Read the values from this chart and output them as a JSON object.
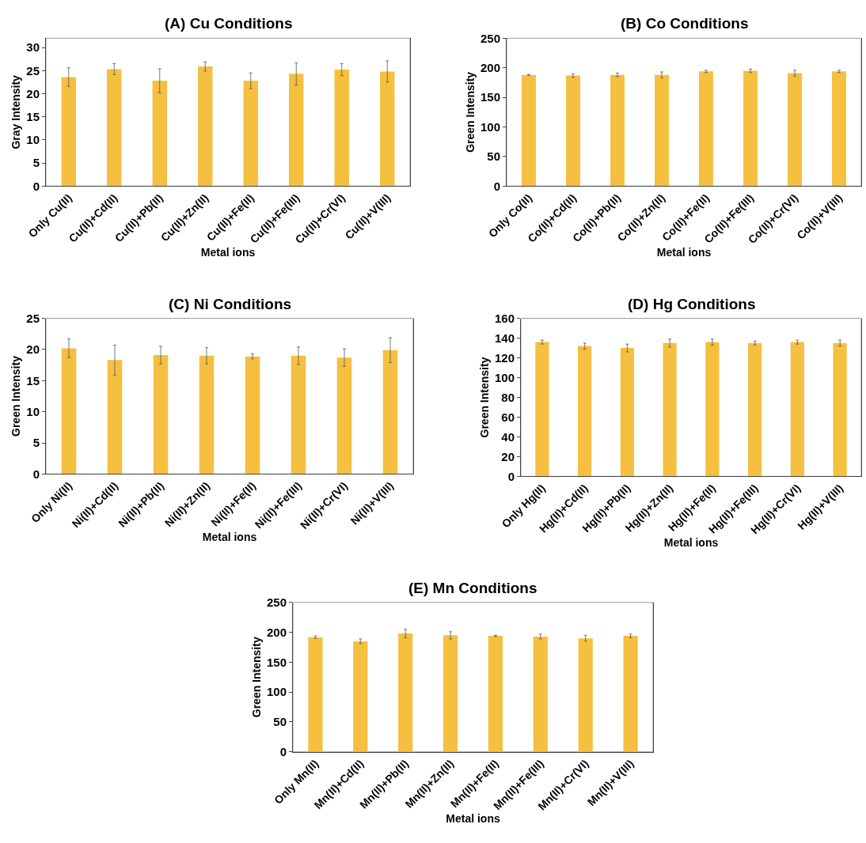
{
  "chart_data": [
    {
      "type": "bar",
      "title": "(A) Cu Conditions",
      "xlabel": "Metal ions",
      "ylabel": "Gray Intensity",
      "categories": [
        "Only Cu(II)",
        "Cu(II)+Cd(II)",
        "Cu(II)+Pb(II)",
        "Cu(II)+Zn(II)",
        "Cu(II)+Fe(II)",
        "Cu(II)+Fe(III)",
        "Cu(II)+Cr(VI)",
        "Cu(II)+V(III)"
      ],
      "values": [
        23.6,
        25.3,
        22.8,
        25.9,
        22.8,
        24.3,
        25.2,
        24.8
      ],
      "errors": [
        2.0,
        1.2,
        2.6,
        1.0,
        1.7,
        2.4,
        1.3,
        2.3
      ],
      "color": "#f5bf3f",
      "ylim": [
        0,
        32
      ],
      "yticks": [
        0,
        5,
        10,
        15,
        20,
        25,
        30
      ]
    },
    {
      "type": "bar",
      "title": "(B) Co Conditions",
      "xlabel": "Metal ions",
      "ylabel": "Green Intensity",
      "categories": [
        "Only Co(II)",
        "Co(II)+Cd(II)",
        "Co(II)+Pb(II)",
        "Co(II)+Zn(II)",
        "Co(II)+Fe(II)",
        "Co(II)+Fe(III)",
        "Co(II)+Cr(VI)",
        "Co(II)+V(III)"
      ],
      "values": [
        188,
        187,
        188,
        188,
        194,
        195,
        191,
        194
      ],
      "errors": [
        1,
        3,
        3,
        5,
        2,
        3,
        5,
        2
      ],
      "color": "#f5bf3f",
      "ylim": [
        0,
        250
      ],
      "yticks": [
        0,
        50,
        100,
        150,
        200,
        250
      ]
    },
    {
      "type": "bar",
      "title": "(C) Ni Conditions",
      "xlabel": "Metal ions",
      "ylabel": "Green Intensity",
      "categories": [
        "Only Ni(II)",
        "Ni(II)+Cd(II)",
        "Ni(II)+Pb(II)",
        "Ni(II)+Zn(II)",
        "Ni(II)+Fe(II)",
        "Ni(II)+Fe(III)",
        "Ni(II)+Cr(VI)",
        "Ni(II)+V(III)"
      ],
      "values": [
        20.2,
        18.3,
        19.1,
        19.0,
        18.9,
        19.0,
        18.7,
        19.9
      ],
      "errors": [
        1.5,
        2.4,
        1.4,
        1.3,
        0.4,
        1.4,
        1.4,
        2.0
      ],
      "color": "#f5bf3f",
      "ylim": [
        0,
        25
      ],
      "yticks": [
        0,
        5,
        10,
        15,
        20,
        25
      ]
    },
    {
      "type": "bar",
      "title": "(D) Hg Conditions",
      "xlabel": "Metal ions",
      "ylabel": "Green Intensity",
      "categories": [
        "Only Hg(II)",
        "Hg(II)+Cd(II)",
        "Hg(II)+Pb(II)",
        "Hg(II)+Zn(II)",
        "Hg(II)+Fe(II)",
        "Hg(II)+Fe(III)",
        "Hg(II)+Cr(VI)",
        "Hg(II)+V(III)"
      ],
      "values": [
        136,
        132,
        130,
        135,
        136,
        135,
        136,
        135
      ],
      "errors": [
        2,
        3,
        4,
        4,
        3,
        2,
        2,
        3
      ],
      "color": "#f5bf3f",
      "ylim": [
        0,
        160
      ],
      "yticks": [
        0,
        20,
        40,
        60,
        80,
        100,
        120,
        140,
        160
      ]
    },
    {
      "type": "bar",
      "title": "(E) Mn Conditions",
      "xlabel": "Metal ions",
      "ylabel": "Green Intensity",
      "categories": [
        "Only Mn(II)",
        "Mn(II)+Cd(II)",
        "Mn(II)+Pb(II)",
        "Mn(II)+Zn(II)",
        "Mn(II)+Fe(II)",
        "Mn(II)+Fe(III)",
        "Mn(II)+Cr(VI)",
        "Mn(II)+V(III)"
      ],
      "values": [
        192,
        185,
        198,
        195,
        194,
        193,
        190,
        194
      ],
      "errors": [
        2,
        4,
        7,
        6,
        1,
        4,
        5,
        3
      ],
      "color": "#f5bf3f",
      "ylim": [
        0,
        250
      ],
      "yticks": [
        0,
        50,
        100,
        150,
        200,
        250
      ]
    }
  ]
}
